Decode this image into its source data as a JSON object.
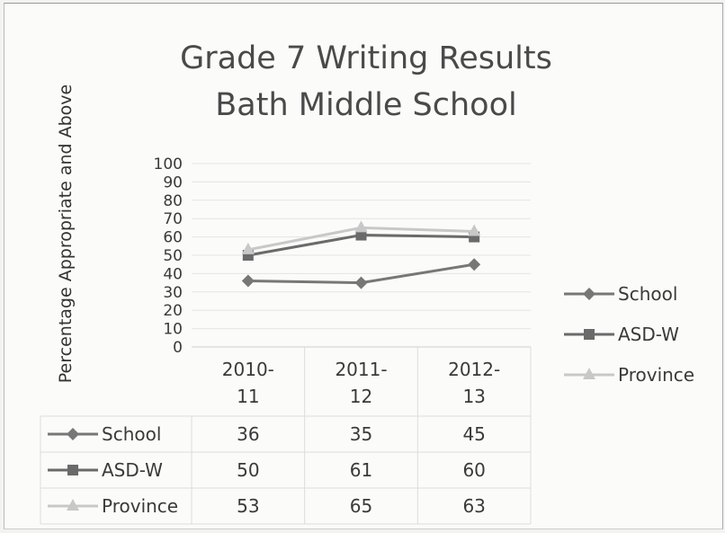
{
  "chart_data": {
    "type": "line",
    "title": [
      "Grade 7 Writing Results",
      "Bath Middle School"
    ],
    "ylabel": "Percentage Appropriate and Above",
    "xlabel": "",
    "ylim": [
      0,
      100
    ],
    "yticks": [
      0,
      10,
      20,
      30,
      40,
      50,
      60,
      70,
      80,
      90,
      100
    ],
    "grid": true,
    "legend": "right",
    "data_table": true,
    "categories": [
      [
        "2010-",
        "11"
      ],
      [
        "2011-",
        "12"
      ],
      [
        "2012-",
        "13"
      ]
    ],
    "series": [
      {
        "name": "School",
        "values": [
          36,
          35,
          45
        ],
        "color": "#777777",
        "marker": "diamond"
      },
      {
        "name": "ASD-W",
        "values": [
          50,
          61,
          60
        ],
        "color": "#6a6a6a",
        "marker": "square"
      },
      {
        "name": "Province",
        "values": [
          53,
          65,
          63
        ],
        "color": "#c8c8c8",
        "marker": "triangle"
      }
    ]
  }
}
